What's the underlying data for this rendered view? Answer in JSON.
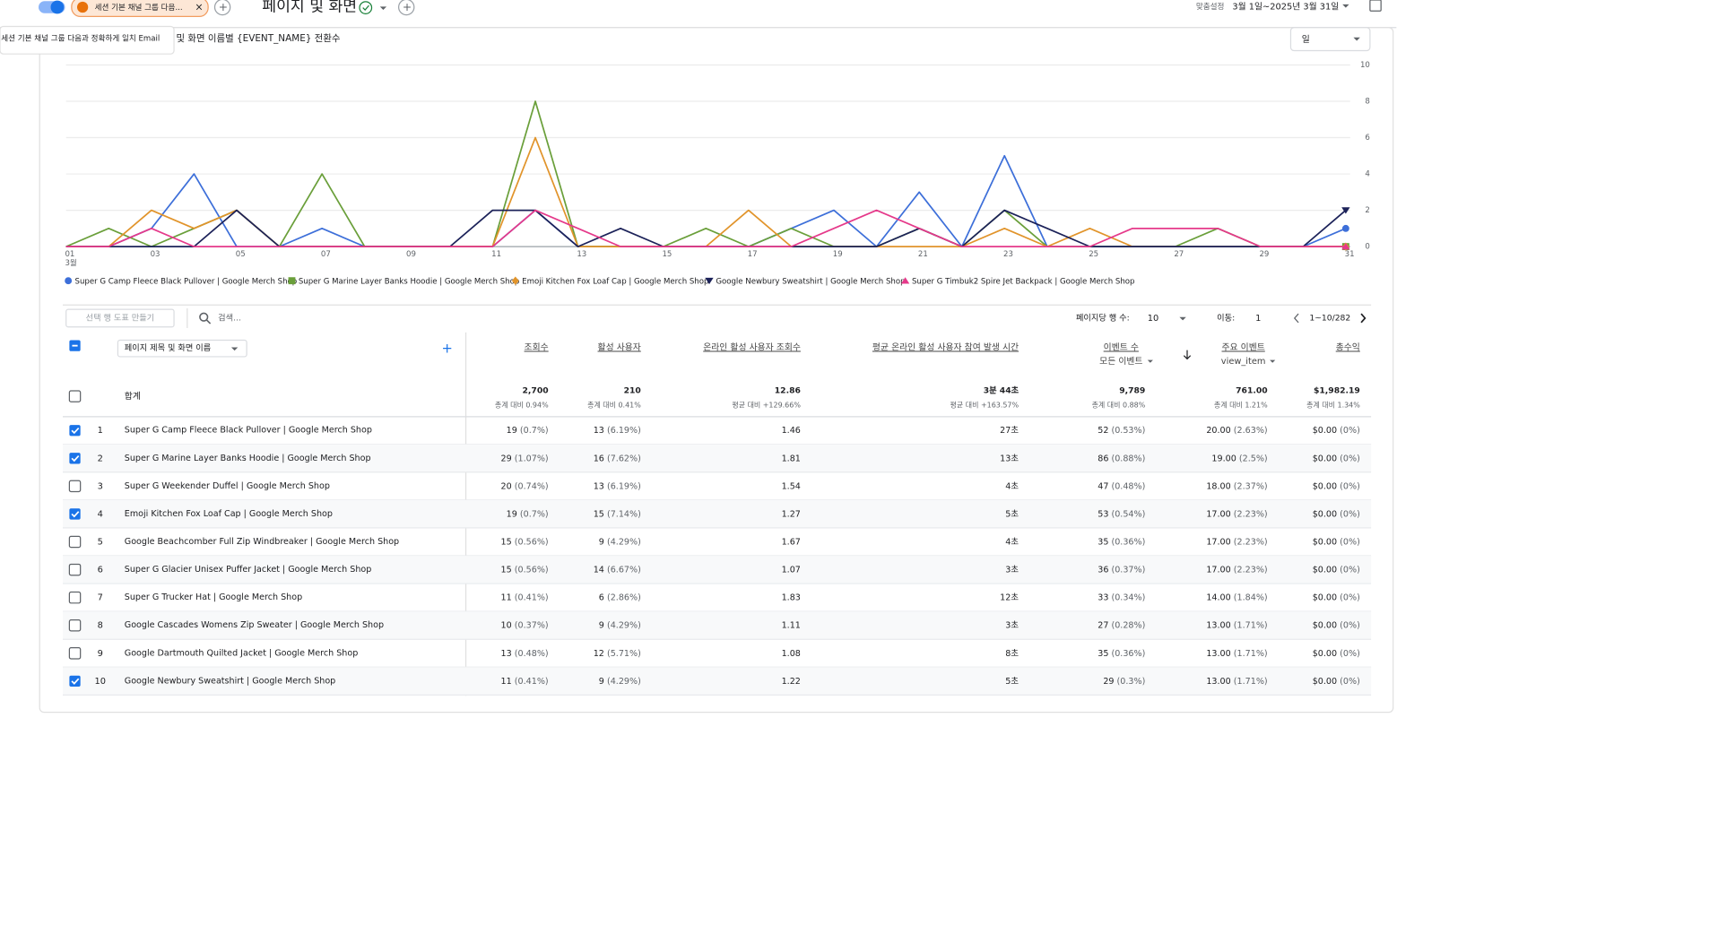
{
  "header": {
    "tab_chip": "세션 기본 채널 그룹 다음...",
    "tooltip": "세션 기본 채널 그룹 다음과 정확하게 일치 Email",
    "title": "페이지 및 화면",
    "date_prefix": "맞춤설정",
    "date_range": "3월 1일~2025년 3월 31일"
  },
  "chart_data": {
    "type": "line",
    "title": "및 화면 이름별 {EVENT_NAME} 전환수",
    "interval": "일",
    "categories": [
      "01",
      null,
      "03",
      null,
      "05",
      null,
      "07",
      null,
      "09",
      null,
      "11",
      null,
      "13",
      null,
      "15",
      null,
      "17",
      null,
      "19",
      null,
      "21",
      null,
      "23",
      null,
      "25",
      null,
      "27",
      null,
      "29",
      null,
      "31"
    ],
    "x_sublabel": "3월",
    "ylim": [
      0,
      10
    ],
    "yticks": [
      0,
      2,
      4,
      6,
      8,
      10
    ],
    "grid": true,
    "series": [
      {
        "name": "Super G Camp Fleece Black Pullover | Google Merch Shop",
        "color": "#3d6fd9",
        "marker": "circle",
        "values": [
          0,
          0,
          1,
          4,
          0,
          0,
          1,
          0,
          0,
          0,
          0,
          2,
          0,
          0,
          0,
          0,
          0,
          1,
          2,
          0,
          3,
          0,
          5,
          0,
          0,
          0,
          0,
          0,
          0,
          0,
          1
        ]
      },
      {
        "name": "Super G Marine Layer Banks Hoodie | Google Merch Shop",
        "color": "#6a9f3a",
        "marker": "square",
        "values": [
          0,
          1,
          0,
          1,
          2,
          0,
          4,
          0,
          0,
          0,
          0,
          8,
          0,
          0,
          0,
          1,
          0,
          1,
          0,
          0,
          1,
          0,
          2,
          0,
          0,
          0,
          0,
          1,
          0,
          0,
          0
        ]
      },
      {
        "name": "Emoji Kitchen Fox Loaf Cap | Google Merch Shop",
        "color": "#e1942b",
        "marker": "diamond",
        "values": [
          0,
          0,
          2,
          1,
          2,
          0,
          0,
          0,
          0,
          0,
          0,
          6,
          0,
          0,
          0,
          0,
          2,
          0,
          0,
          0,
          0,
          0,
          1,
          0,
          1,
          0,
          0,
          0,
          0,
          0,
          0
        ]
      },
      {
        "name": "Google Newbury Sweatshirt | Google Merch Shop",
        "color": "#1c2259",
        "marker": "triangle-down",
        "values": [
          0,
          0,
          0,
          0,
          2,
          0,
          0,
          0,
          0,
          0,
          2,
          2,
          0,
          1,
          0,
          0,
          0,
          0,
          0,
          0,
          1,
          0,
          2,
          1,
          0,
          0,
          0,
          0,
          0,
          0,
          2
        ]
      },
      {
        "name": "Super G Timbuk2 Spire Jet Backpack | Google Merch Shop",
        "color": "#e5398a",
        "marker": "triangle-up",
        "values": [
          0,
          0,
          1,
          0,
          0,
          0,
          0,
          0,
          0,
          0,
          0,
          2,
          1,
          0,
          0,
          0,
          0,
          0,
          1,
          2,
          1,
          0,
          0,
          0,
          0,
          1,
          1,
          1,
          0,
          0,
          0
        ]
      }
    ]
  },
  "table": {
    "controls": {
      "plot_rows": "선택 행 도표 만들기",
      "search": "검색...",
      "rows_per_page_label": "페이지당 행 수:",
      "rows_per_page": 10,
      "goto_label": "이동:",
      "goto": 1,
      "range": "1~10/282"
    },
    "dimension": "페이지 제목 및 화면 이름",
    "columns": [
      {
        "title": "조회수"
      },
      {
        "title": "활성 사용자"
      },
      {
        "title": "온라인 활성 사용자 조회수"
      },
      {
        "title": "평균 온라인 활성 사용자 참여 발생 시간"
      },
      {
        "title": "이벤트 수",
        "sub": "모든 이벤트"
      },
      {
        "title": "주요 이벤트",
        "sub": "view_item"
      },
      {
        "title": "총수익"
      }
    ],
    "total": {
      "label": "합계",
      "cells": [
        [
          "2,700",
          "총계 대비 0.94%"
        ],
        [
          "210",
          "총계 대비 0.41%"
        ],
        [
          "12.86",
          "평균 대비 +129.66%"
        ],
        [
          "3분 44초",
          "평균 대비 +163.57%"
        ],
        [
          "9,789",
          "총계 대비 0.88%"
        ],
        [
          "761.00",
          "총계 대비 1.21%"
        ],
        [
          "$1,982.19",
          "총계 대비 1.34%"
        ]
      ]
    },
    "rows": [
      {
        "checked": true,
        "index": 1,
        "title": "Super G Camp Fleece Black Pullover | Google Merch Shop",
        "cells": [
          [
            "19",
            "(0.7%)"
          ],
          [
            "13",
            "(6.19%)"
          ],
          [
            "1.46"
          ],
          [
            "27초"
          ],
          [
            "52",
            "(0.53%)"
          ],
          [
            "20.00",
            "(2.63%)"
          ],
          [
            "$0.00",
            "(0%)"
          ]
        ]
      },
      {
        "checked": true,
        "index": 2,
        "title": "Super G Marine Layer Banks Hoodie | Google Merch Shop",
        "cells": [
          [
            "29",
            "(1.07%)"
          ],
          [
            "16",
            "(7.62%)"
          ],
          [
            "1.81"
          ],
          [
            "13초"
          ],
          [
            "86",
            "(0.88%)"
          ],
          [
            "19.00",
            "(2.5%)"
          ],
          [
            "$0.00",
            "(0%)"
          ]
        ]
      },
      {
        "checked": false,
        "index": 3,
        "title": "Super G Weekender Duffel | Google Merch Shop",
        "cells": [
          [
            "20",
            "(0.74%)"
          ],
          [
            "13",
            "(6.19%)"
          ],
          [
            "1.54"
          ],
          [
            "4초"
          ],
          [
            "47",
            "(0.48%)"
          ],
          [
            "18.00",
            "(2.37%)"
          ],
          [
            "$0.00",
            "(0%)"
          ]
        ]
      },
      {
        "checked": true,
        "index": 4,
        "title": "Emoji Kitchen Fox Loaf Cap | Google Merch Shop",
        "cells": [
          [
            "19",
            "(0.7%)"
          ],
          [
            "15",
            "(7.14%)"
          ],
          [
            "1.27"
          ],
          [
            "5초"
          ],
          [
            "53",
            "(0.54%)"
          ],
          [
            "17.00",
            "(2.23%)"
          ],
          [
            "$0.00",
            "(0%)"
          ]
        ]
      },
      {
        "checked": false,
        "index": 5,
        "title": "Google Beachcomber Full Zip Windbreaker | Google Merch Shop",
        "cells": [
          [
            "15",
            "(0.56%)"
          ],
          [
            "9",
            "(4.29%)"
          ],
          [
            "1.67"
          ],
          [
            "4초"
          ],
          [
            "35",
            "(0.36%)"
          ],
          [
            "17.00",
            "(2.23%)"
          ],
          [
            "$0.00",
            "(0%)"
          ]
        ]
      },
      {
        "checked": false,
        "index": 6,
        "title": "Super G Glacier Unisex Puffer Jacket | Google Merch Shop",
        "cells": [
          [
            "15",
            "(0.56%)"
          ],
          [
            "14",
            "(6.67%)"
          ],
          [
            "1.07"
          ],
          [
            "3초"
          ],
          [
            "36",
            "(0.37%)"
          ],
          [
            "17.00",
            "(2.23%)"
          ],
          [
            "$0.00",
            "(0%)"
          ]
        ]
      },
      {
        "checked": false,
        "index": 7,
        "title": "Super G Trucker Hat | Google Merch Shop",
        "cells": [
          [
            "11",
            "(0.41%)"
          ],
          [
            "6",
            "(2.86%)"
          ],
          [
            "1.83"
          ],
          [
            "12초"
          ],
          [
            "33",
            "(0.34%)"
          ],
          [
            "14.00",
            "(1.84%)"
          ],
          [
            "$0.00",
            "(0%)"
          ]
        ]
      },
      {
        "checked": false,
        "index": 8,
        "title": "Google Cascades Womens Zip Sweater | Google Merch Shop",
        "cells": [
          [
            "10",
            "(0.37%)"
          ],
          [
            "9",
            "(4.29%)"
          ],
          [
            "1.11"
          ],
          [
            "3초"
          ],
          [
            "27",
            "(0.28%)"
          ],
          [
            "13.00",
            "(1.71%)"
          ],
          [
            "$0.00",
            "(0%)"
          ]
        ]
      },
      {
        "checked": false,
        "index": 9,
        "title": "Google Dartmouth Quilted Jacket | Google Merch Shop",
        "cells": [
          [
            "13",
            "(0.48%)"
          ],
          [
            "12",
            "(5.71%)"
          ],
          [
            "1.08"
          ],
          [
            "8초"
          ],
          [
            "35",
            "(0.36%)"
          ],
          [
            "13.00",
            "(1.71%)"
          ],
          [
            "$0.00",
            "(0%)"
          ]
        ]
      },
      {
        "checked": true,
        "index": 10,
        "title": "Google Newbury Sweatshirt | Google Merch Shop",
        "cells": [
          [
            "11",
            "(0.41%)"
          ],
          [
            "9",
            "(4.29%)"
          ],
          [
            "1.22"
          ],
          [
            "5초"
          ],
          [
            "29",
            "(0.3%)"
          ],
          [
            "13.00",
            "(1.71%)"
          ],
          [
            "$0.00",
            "(0%)"
          ]
        ]
      }
    ]
  }
}
